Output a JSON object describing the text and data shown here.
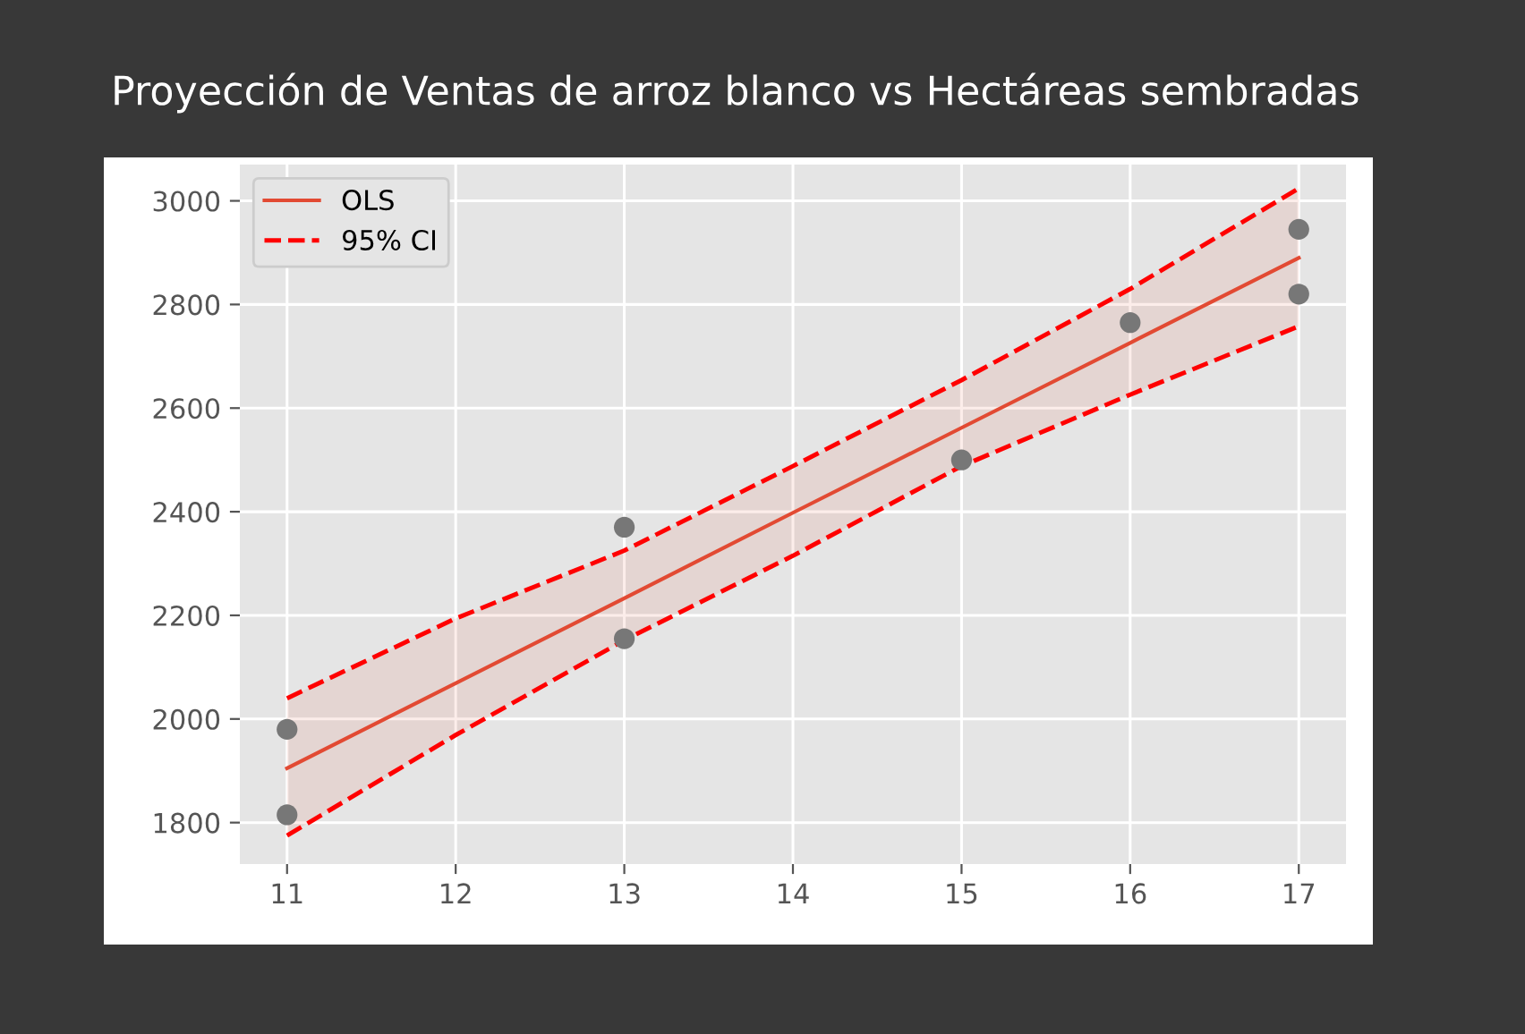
{
  "chart_data": {
    "type": "scatter",
    "title": "Proyección de Ventas de arroz blanco vs Hectáreas sembradas",
    "xlim": [
      10.72,
      17.28
    ],
    "xticks": [
      11,
      12,
      13,
      14,
      15,
      16,
      17
    ],
    "ylim": [
      1720,
      3070
    ],
    "yticks": [
      1800,
      2000,
      2200,
      2400,
      2600,
      2800,
      3000
    ],
    "grid": true,
    "legend": "top left",
    "series": [
      {
        "color": "#777777",
        "marker": "circle",
        "x": [
          11,
          11,
          13,
          13,
          15,
          16,
          17,
          17
        ],
        "values": [
          1980,
          1815,
          2370,
          2155,
          2500,
          2765,
          2945,
          2820
        ]
      },
      {
        "type": "line",
        "name": "OLS",
        "color": "#e24a33",
        "line_style": "solid",
        "x": [
          11,
          12,
          13,
          14,
          15,
          16,
          17
        ],
        "values": [
          1905,
          2069,
          2233,
          2398,
          2562,
          2726,
          2890
        ],
        "lower": [
          1775,
          1969,
          2152,
          2315,
          2488,
          2626,
          2758
        ],
        "upper": [
          2040,
          2194,
          2325,
          2488,
          2654,
          2830,
          3024
        ]
      },
      {
        "type": "line",
        "name": "95% CI",
        "color": "#ff0000",
        "line_style": "dashed",
        "x": [
          11,
          12,
          13,
          14,
          15,
          16,
          17
        ],
        "values": [
          2040,
          2194,
          2325,
          2488,
          2654,
          2830,
          3024
        ]
      },
      {
        "type": "line",
        "color": "#ff0000",
        "line_style": "dashed",
        "x": [
          11,
          12,
          13,
          14,
          15,
          16,
          17
        ],
        "values": [
          1775,
          1969,
          2152,
          2315,
          2488,
          2626,
          2758
        ]
      }
    ]
  }
}
